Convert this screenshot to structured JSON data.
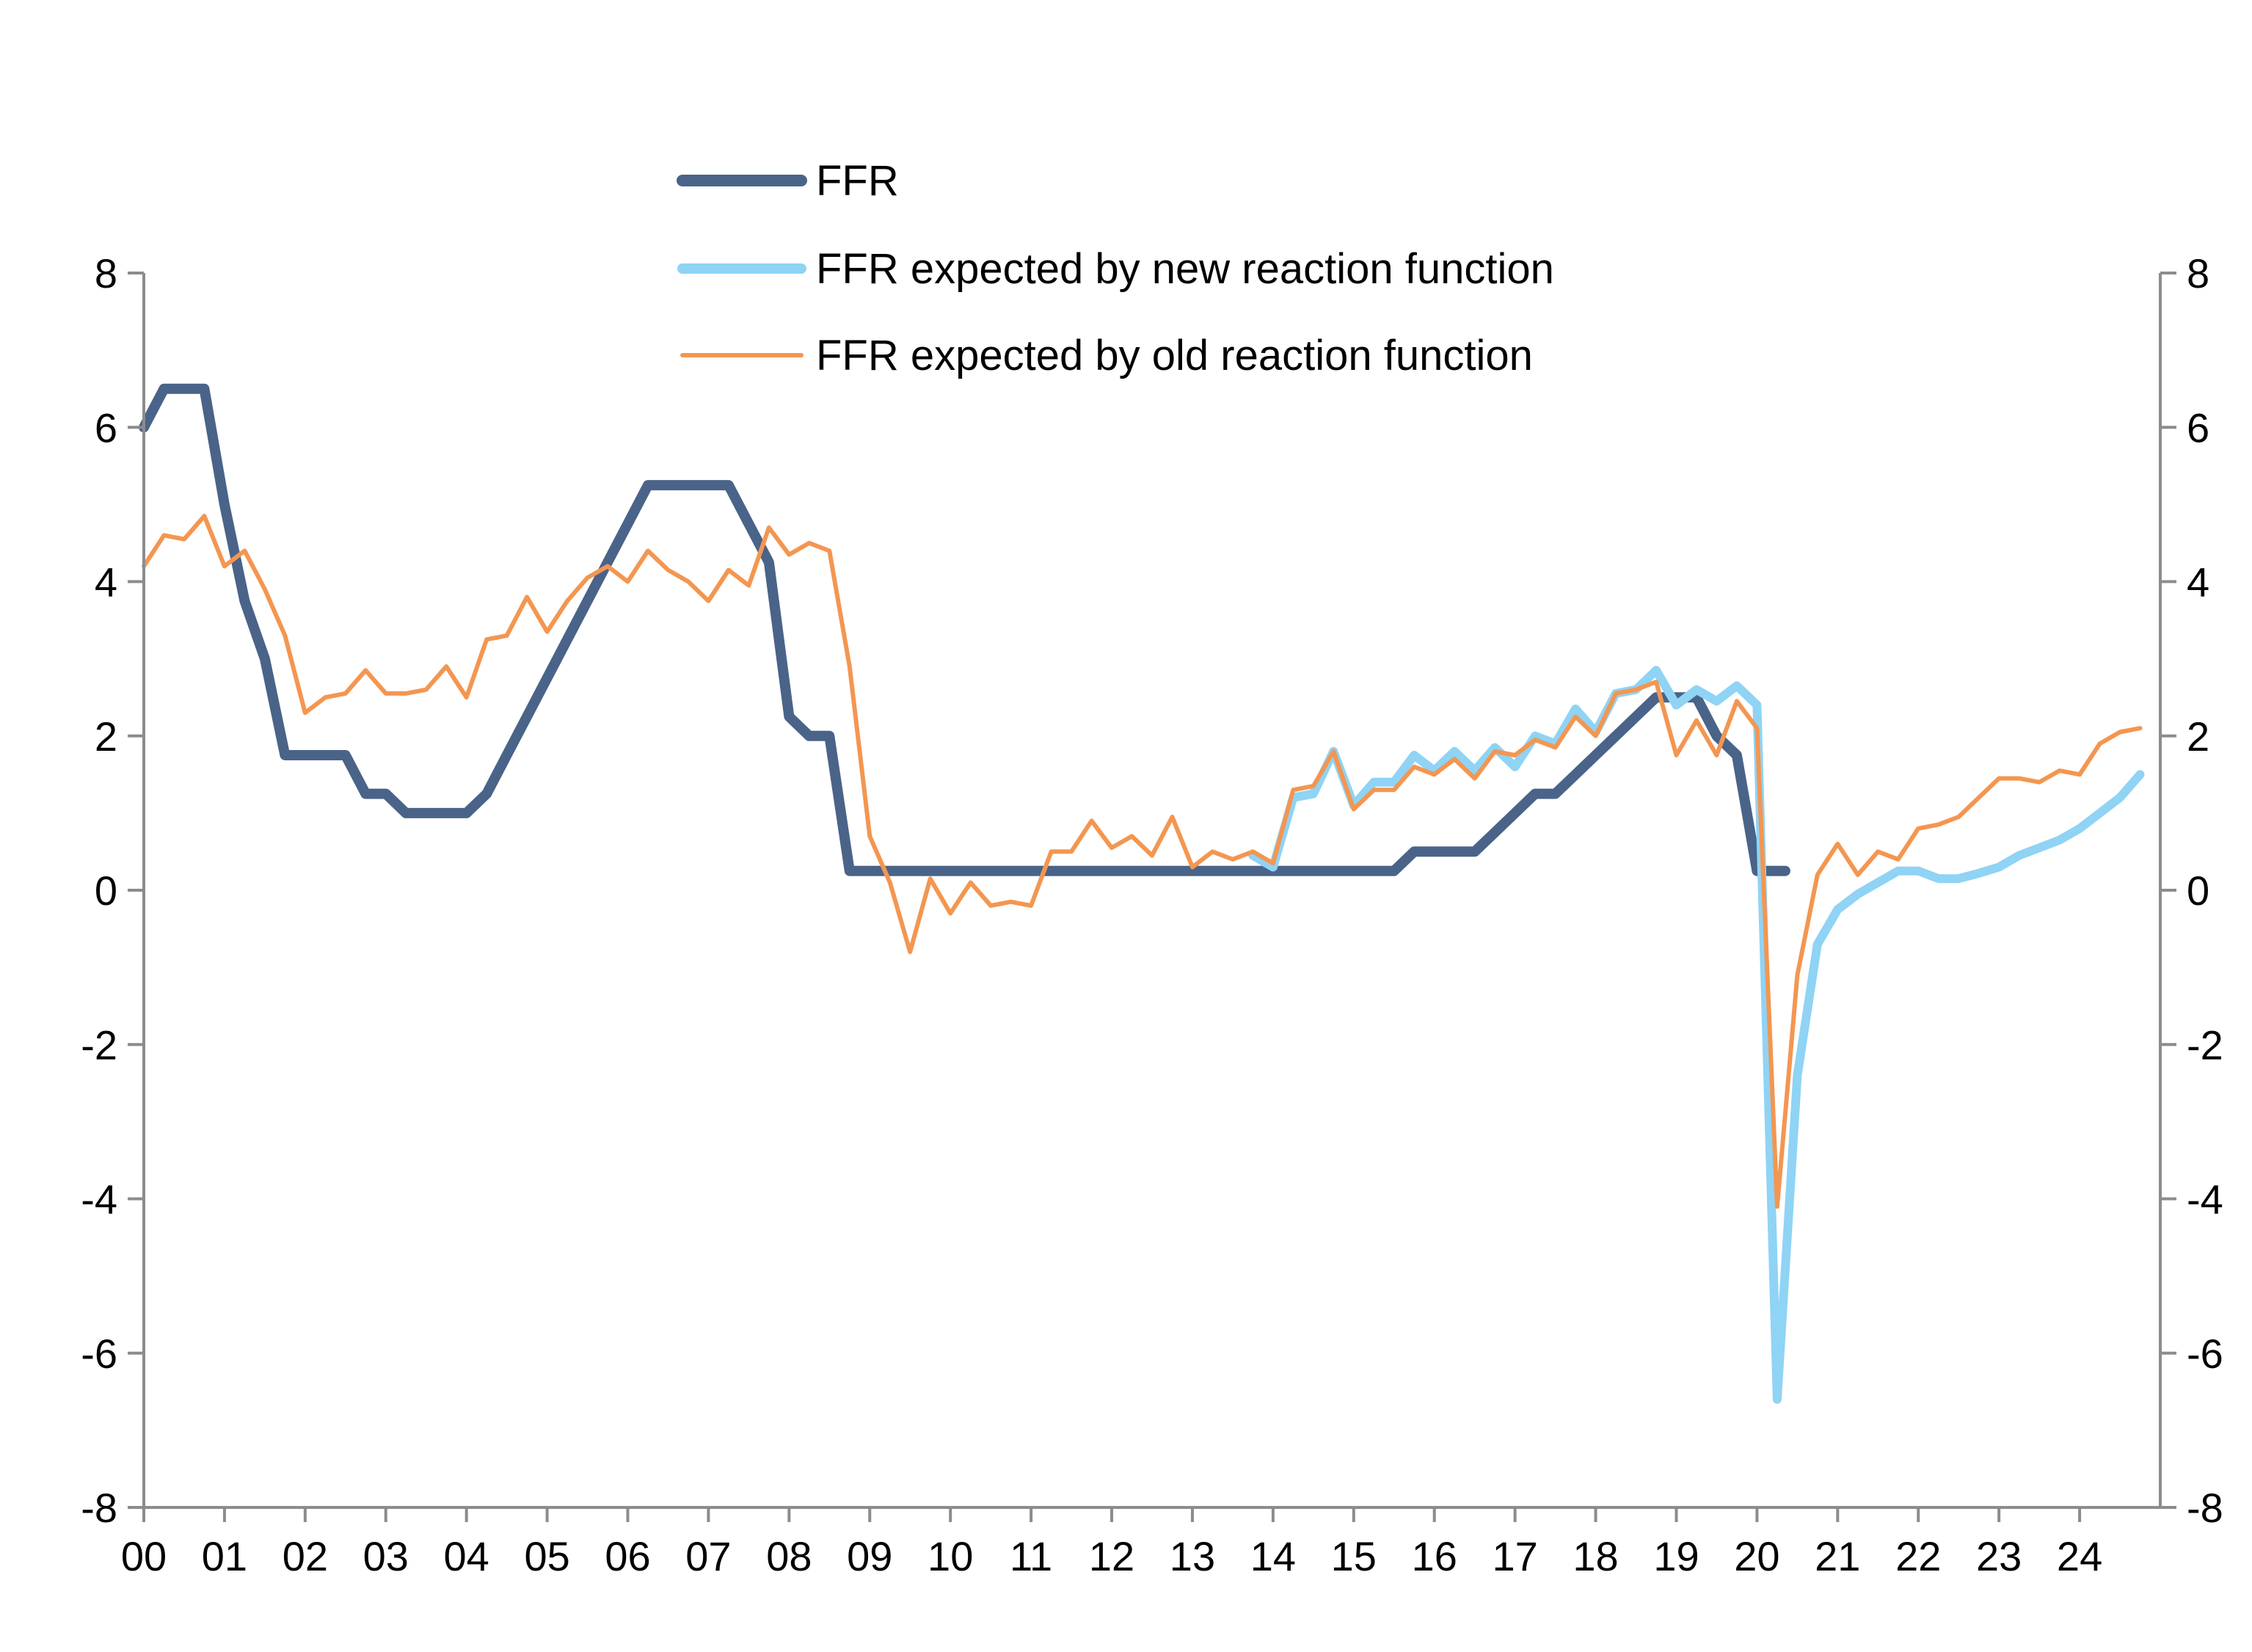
{
  "chart_data": {
    "type": "line",
    "title": "",
    "xlabel": "",
    "ylabel": "",
    "ylim": [
      -8,
      8
    ],
    "yticks": [
      "8",
      "6",
      "4",
      "2",
      "0",
      "-2",
      "-4",
      "-6",
      "-8"
    ],
    "y2ticks": [
      "8",
      "6",
      "4",
      "2",
      "0",
      "-2",
      "-4",
      "-6",
      "-8"
    ],
    "xlim": [
      2000,
      2025
    ],
    "xticks": [
      "00",
      "01",
      "02",
      "03",
      "04",
      "05",
      "06",
      "07",
      "08",
      "09",
      "10",
      "11",
      "12",
      "13",
      "14",
      "15",
      "16",
      "17",
      "18",
      "19",
      "20",
      "21",
      "22",
      "23",
      "24"
    ],
    "grid": false,
    "legend_position": "top-center",
    "series": [
      {
        "name": "FFR",
        "color": "#4A6388",
        "points": [
          [
            2000.0,
            6.0
          ],
          [
            2000.25,
            6.5
          ],
          [
            2000.5,
            6.5
          ],
          [
            2000.75,
            6.5
          ],
          [
            2001.0,
            5.0
          ],
          [
            2001.25,
            3.75
          ],
          [
            2001.5,
            3.0
          ],
          [
            2001.75,
            1.75
          ],
          [
            2002.0,
            1.75
          ],
          [
            2002.25,
            1.75
          ],
          [
            2002.5,
            1.75
          ],
          [
            2002.75,
            1.25
          ],
          [
            2003.0,
            1.25
          ],
          [
            2003.25,
            1.0
          ],
          [
            2003.5,
            1.0
          ],
          [
            2003.75,
            1.0
          ],
          [
            2004.0,
            1.0
          ],
          [
            2004.25,
            1.25
          ],
          [
            2004.5,
            1.75
          ],
          [
            2004.75,
            2.25
          ],
          [
            2005.0,
            2.75
          ],
          [
            2005.25,
            3.25
          ],
          [
            2005.5,
            3.75
          ],
          [
            2005.75,
            4.25
          ],
          [
            2006.0,
            4.75
          ],
          [
            2006.25,
            5.25
          ],
          [
            2006.5,
            5.25
          ],
          [
            2006.75,
            5.25
          ],
          [
            2007.0,
            5.25
          ],
          [
            2007.25,
            5.25
          ],
          [
            2007.5,
            4.75
          ],
          [
            2007.75,
            4.25
          ],
          [
            2008.0,
            2.25
          ],
          [
            2008.25,
            2.0
          ],
          [
            2008.5,
            2.0
          ],
          [
            2008.75,
            0.25
          ],
          [
            2009.0,
            0.25
          ],
          [
            2010.0,
            0.25
          ],
          [
            2011.0,
            0.25
          ],
          [
            2012.0,
            0.25
          ],
          [
            2013.0,
            0.25
          ],
          [
            2014.0,
            0.25
          ],
          [
            2015.0,
            0.25
          ],
          [
            2015.5,
            0.25
          ],
          [
            2015.75,
            0.5
          ],
          [
            2016.0,
            0.5
          ],
          [
            2016.25,
            0.5
          ],
          [
            2016.5,
            0.5
          ],
          [
            2016.75,
            0.75
          ],
          [
            2017.0,
            1.0
          ],
          [
            2017.25,
            1.25
          ],
          [
            2017.5,
            1.25
          ],
          [
            2017.75,
            1.5
          ],
          [
            2018.0,
            1.75
          ],
          [
            2018.25,
            2.0
          ],
          [
            2018.5,
            2.25
          ],
          [
            2018.75,
            2.5
          ],
          [
            2019.0,
            2.5
          ],
          [
            2019.25,
            2.5
          ],
          [
            2019.5,
            2.0
          ],
          [
            2019.75,
            1.75
          ],
          [
            2020.0,
            0.25
          ],
          [
            2020.25,
            0.25
          ],
          [
            2020.35,
            0.25
          ]
        ]
      },
      {
        "name": "FFR expected by new reaction function",
        "color": "#8FD3F5",
        "points": [
          [
            2013.75,
            0.45
          ],
          [
            2014.0,
            0.3
          ],
          [
            2014.25,
            1.2
          ],
          [
            2014.5,
            1.25
          ],
          [
            2014.75,
            1.8
          ],
          [
            2015.0,
            1.1
          ],
          [
            2015.25,
            1.4
          ],
          [
            2015.5,
            1.4
          ],
          [
            2015.75,
            1.75
          ],
          [
            2016.0,
            1.55
          ],
          [
            2016.25,
            1.8
          ],
          [
            2016.5,
            1.55
          ],
          [
            2016.75,
            1.85
          ],
          [
            2017.0,
            1.6
          ],
          [
            2017.25,
            2.0
          ],
          [
            2017.5,
            1.9
          ],
          [
            2017.75,
            2.35
          ],
          [
            2018.0,
            2.05
          ],
          [
            2018.25,
            2.55
          ],
          [
            2018.5,
            2.6
          ],
          [
            2018.75,
            2.85
          ],
          [
            2019.0,
            2.4
          ],
          [
            2019.25,
            2.6
          ],
          [
            2019.5,
            2.45
          ],
          [
            2019.75,
            2.65
          ],
          [
            2020.0,
            2.4
          ],
          [
            2020.25,
            -6.6
          ],
          [
            2020.5,
            -2.4
          ],
          [
            2020.75,
            -0.7
          ],
          [
            2021.0,
            -0.25
          ],
          [
            2021.25,
            -0.05
          ],
          [
            2021.5,
            0.1
          ],
          [
            2021.75,
            0.25
          ],
          [
            2022.0,
            0.25
          ],
          [
            2022.25,
            0.15
          ],
          [
            2022.5,
            0.15
          ],
          [
            2022.75,
            0.22
          ],
          [
            2023.0,
            0.3
          ],
          [
            2023.25,
            0.45
          ],
          [
            2023.5,
            0.55
          ],
          [
            2023.75,
            0.65
          ],
          [
            2024.0,
            0.8
          ],
          [
            2024.25,
            1.0
          ],
          [
            2024.5,
            1.2
          ],
          [
            2024.75,
            1.5
          ]
        ]
      },
      {
        "name": "FFR expected by old reaction function",
        "color": "#F39651",
        "points": [
          [
            2000.0,
            4.2
          ],
          [
            2000.25,
            4.6
          ],
          [
            2000.5,
            4.55
          ],
          [
            2000.75,
            4.85
          ],
          [
            2001.0,
            4.2
          ],
          [
            2001.25,
            4.4
          ],
          [
            2001.5,
            3.9
          ],
          [
            2001.75,
            3.3
          ],
          [
            2002.0,
            2.3
          ],
          [
            2002.25,
            2.5
          ],
          [
            2002.5,
            2.55
          ],
          [
            2002.75,
            2.85
          ],
          [
            2003.0,
            2.55
          ],
          [
            2003.25,
            2.55
          ],
          [
            2003.5,
            2.6
          ],
          [
            2003.75,
            2.9
          ],
          [
            2004.0,
            2.5
          ],
          [
            2004.25,
            3.25
          ],
          [
            2004.5,
            3.3
          ],
          [
            2004.75,
            3.8
          ],
          [
            2005.0,
            3.35
          ],
          [
            2005.25,
            3.75
          ],
          [
            2005.5,
            4.05
          ],
          [
            2005.75,
            4.2
          ],
          [
            2006.0,
            4.0
          ],
          [
            2006.25,
            4.4
          ],
          [
            2006.5,
            4.15
          ],
          [
            2006.75,
            4.0
          ],
          [
            2007.0,
            3.75
          ],
          [
            2007.25,
            4.15
          ],
          [
            2007.5,
            3.95
          ],
          [
            2007.75,
            4.7
          ],
          [
            2008.0,
            4.35
          ],
          [
            2008.25,
            4.5
          ],
          [
            2008.5,
            4.4
          ],
          [
            2008.75,
            2.9
          ],
          [
            2009.0,
            0.7
          ],
          [
            2009.25,
            0.1
          ],
          [
            2009.5,
            -0.8
          ],
          [
            2009.75,
            0.15
          ],
          [
            2010.0,
            -0.3
          ],
          [
            2010.25,
            0.1
          ],
          [
            2010.5,
            -0.2
          ],
          [
            2010.75,
            -0.15
          ],
          [
            2011.0,
            -0.2
          ],
          [
            2011.25,
            0.5
          ],
          [
            2011.5,
            0.5
          ],
          [
            2011.75,
            0.9
          ],
          [
            2012.0,
            0.55
          ],
          [
            2012.25,
            0.7
          ],
          [
            2012.5,
            0.45
          ],
          [
            2012.75,
            0.95
          ],
          [
            2013.0,
            0.3
          ],
          [
            2013.25,
            0.5
          ],
          [
            2013.5,
            0.4
          ],
          [
            2013.75,
            0.5
          ],
          [
            2014.0,
            0.35
          ],
          [
            2014.25,
            1.3
          ],
          [
            2014.5,
            1.35
          ],
          [
            2014.75,
            1.8
          ],
          [
            2015.0,
            1.05
          ],
          [
            2015.25,
            1.3
          ],
          [
            2015.5,
            1.3
          ],
          [
            2015.75,
            1.6
          ],
          [
            2016.0,
            1.5
          ],
          [
            2016.25,
            1.7
          ],
          [
            2016.5,
            1.45
          ],
          [
            2016.75,
            1.8
          ],
          [
            2017.0,
            1.75
          ],
          [
            2017.25,
            1.95
          ],
          [
            2017.5,
            1.85
          ],
          [
            2017.75,
            2.25
          ],
          [
            2018.0,
            2.0
          ],
          [
            2018.25,
            2.55
          ],
          [
            2018.5,
            2.6
          ],
          [
            2018.75,
            2.7
          ],
          [
            2019.0,
            1.75
          ],
          [
            2019.25,
            2.2
          ],
          [
            2019.5,
            1.75
          ],
          [
            2019.75,
            2.45
          ],
          [
            2020.0,
            2.1
          ],
          [
            2020.25,
            -4.1
          ],
          [
            2020.5,
            -1.1
          ],
          [
            2020.75,
            0.2
          ],
          [
            2021.0,
            0.6
          ],
          [
            2021.25,
            0.2
          ],
          [
            2021.5,
            0.5
          ],
          [
            2021.75,
            0.4
          ],
          [
            2022.0,
            0.8
          ],
          [
            2022.25,
            0.85
          ],
          [
            2022.5,
            0.95
          ],
          [
            2022.75,
            1.2
          ],
          [
            2023.0,
            1.45
          ],
          [
            2023.25,
            1.45
          ],
          [
            2023.5,
            1.4
          ],
          [
            2023.75,
            1.55
          ],
          [
            2024.0,
            1.5
          ],
          [
            2024.25,
            1.9
          ],
          [
            2024.5,
            2.05
          ],
          [
            2024.75,
            2.1
          ]
        ]
      }
    ]
  }
}
